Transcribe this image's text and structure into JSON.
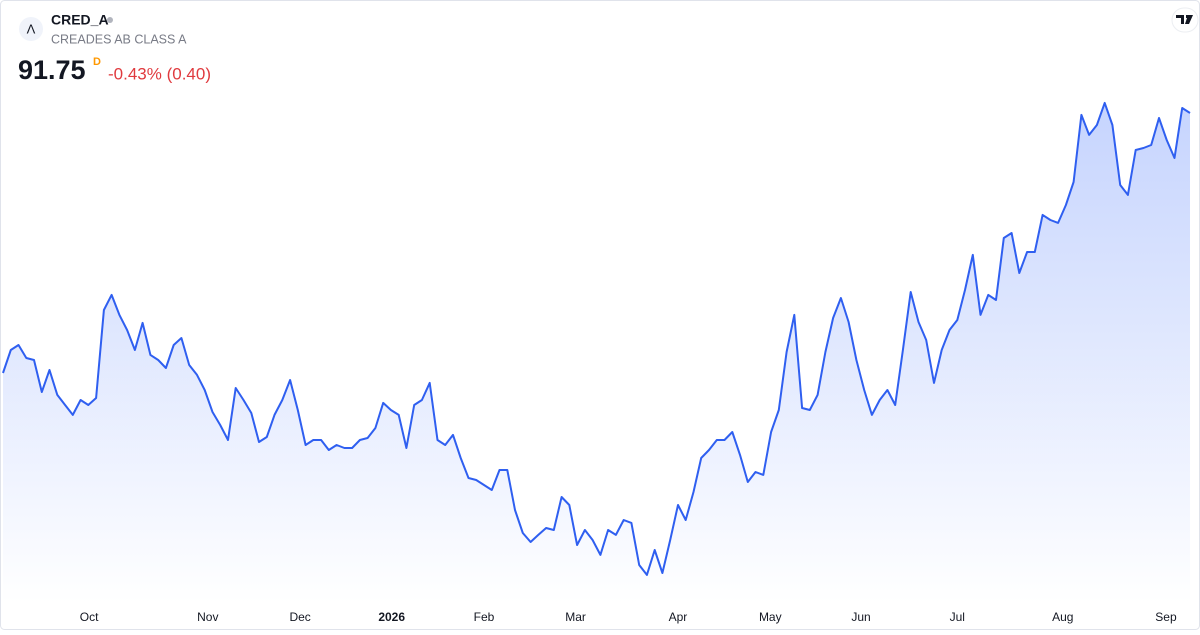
{
  "header": {
    "logo_text": "Λ",
    "symbol": "CRED_A",
    "name": "CREADES AB CLASS A",
    "price": "91.75",
    "interval": "D",
    "change": "-0.43% (0.40)"
  },
  "chart_data": {
    "type": "area",
    "color": "#2f5ff0",
    "values": [
      75.5,
      76.94,
      77.25,
      76.44,
      76.31,
      74.31,
      75.69,
      74.13,
      73.5,
      72.88,
      73.81,
      73.5,
      73.94,
      79.44,
      80.38,
      79.13,
      78.19,
      76.94,
      78.63,
      76.63,
      76.31,
      75.81,
      77.25,
      77.69,
      76.0,
      75.38,
      74.44,
      73.06,
      72.25,
      71.31,
      74.56,
      73.81,
      73.0,
      71.19,
      71.5,
      72.88,
      73.81,
      75.06,
      73.19,
      71.0,
      71.31,
      71.31,
      70.69,
      71.0,
      70.81,
      70.81,
      71.31,
      71.44,
      72.06,
      73.63,
      73.19,
      72.88,
      70.81,
      73.5,
      73.81,
      74.88,
      71.31,
      71.0,
      71.63,
      70.19,
      68.94,
      68.81,
      68.5,
      68.19,
      69.44,
      69.44,
      66.94,
      65.5,
      64.94,
      65.38,
      65.81,
      65.69,
      67.75,
      67.25,
      64.75,
      65.69,
      65.06,
      64.13,
      65.69,
      65.38,
      66.31,
      66.13,
      63.5,
      62.88,
      64.44,
      63.0,
      65.06,
      67.25,
      66.31,
      68.06,
      70.19,
      70.69,
      71.31,
      71.31,
      71.81,
      70.38,
      68.69,
      69.31,
      69.13,
      71.81,
      73.19,
      76.81,
      79.13,
      73.31,
      73.19,
      74.13,
      76.81,
      78.94,
      80.19,
      78.69,
      76.31,
      74.44,
      72.88,
      73.81,
      74.44,
      73.5,
      76.94,
      80.56,
      78.69,
      77.56,
      74.88,
      76.94,
      78.19,
      78.81,
      80.69,
      82.88,
      79.13,
      80.38,
      80.06,
      83.94,
      84.25,
      81.75,
      83.06,
      83.06,
      85.38,
      85.06,
      84.88,
      86.0,
      87.44,
      91.63,
      90.38,
      91.0,
      92.38,
      91.0,
      87.25,
      86.63,
      89.44,
      89.56,
      89.75,
      91.44,
      90.06,
      88.94,
      92.06,
      91.75
    ],
    "ylim": [
      61.5,
      93
    ],
    "xticks": [
      {
        "value": 11.1,
        "label": "Oct"
      },
      {
        "value": 26.4,
        "label": "Nov"
      },
      {
        "value": 38.3,
        "label": "Dec"
      },
      {
        "value": 50.1,
        "label": "2026"
      },
      {
        "value": 62,
        "label": "Feb"
      },
      {
        "value": 73.8,
        "label": "Mar"
      },
      {
        "value": 87,
        "label": "Apr"
      },
      {
        "value": 98.9,
        "label": "May"
      },
      {
        "value": 110.6,
        "label": "Jun"
      },
      {
        "value": 123,
        "label": "Jul"
      },
      {
        "value": 136.6,
        "label": "Aug"
      },
      {
        "value": 149.9,
        "label": "Sep"
      }
    ]
  }
}
